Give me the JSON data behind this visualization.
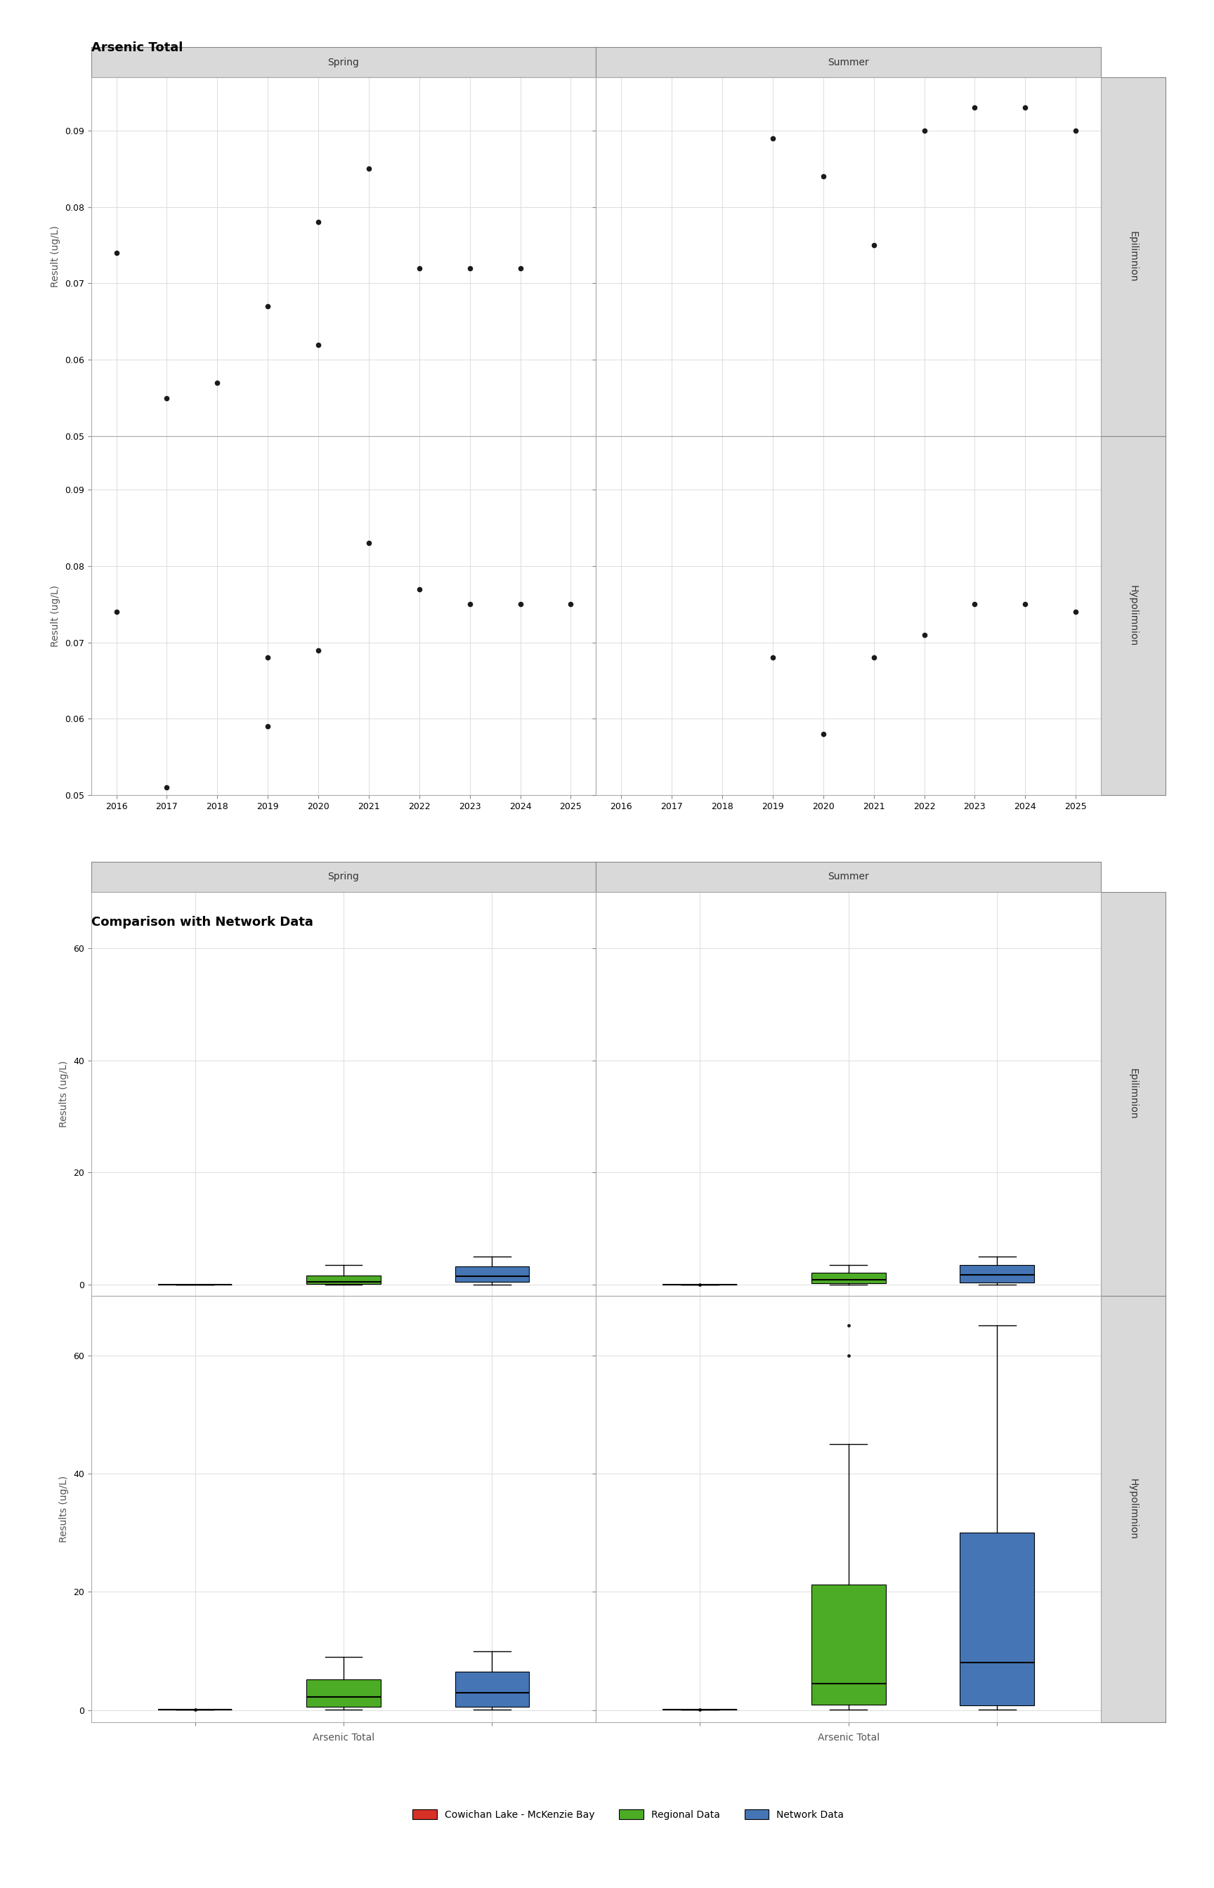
{
  "title1": "Arsenic Total",
  "title2": "Comparison with Network Data",
  "ylabel1": "Result (ug/L)",
  "ylabel2": "Results (ug/L)",
  "xlabel2": "Arsenic Total",
  "scatter_epi_spring_x": [
    2016,
    2017,
    2018,
    2019,
    2020,
    2020,
    2021,
    2022,
    2023,
    2024
  ],
  "scatter_epi_spring_y": [
    0.074,
    0.055,
    0.057,
    0.067,
    0.062,
    0.078,
    0.085,
    0.072,
    0.072,
    0.072
  ],
  "scatter_epi_summer_x": [
    2019,
    2020,
    2021,
    2022,
    2023,
    2024,
    2025
  ],
  "scatter_epi_summer_y": [
    0.089,
    0.084,
    0.075,
    0.09,
    0.093,
    0.093,
    0.09
  ],
  "scatter_hypo_spring_x": [
    2016,
    2017,
    2019,
    2019,
    2020,
    2021,
    2022,
    2023,
    2024,
    2025
  ],
  "scatter_hypo_spring_y": [
    0.074,
    0.051,
    0.059,
    0.068,
    0.069,
    0.083,
    0.077,
    0.075,
    0.075,
    0.075
  ],
  "scatter_hypo_summer_x": [
    2019,
    2020,
    2021,
    2022,
    2023,
    2024,
    2025
  ],
  "scatter_hypo_summer_y": [
    0.068,
    0.058,
    0.068,
    0.071,
    0.075,
    0.075,
    0.074
  ],
  "ylim1": [
    0.05,
    0.097
  ],
  "yticks1": [
    0.05,
    0.06,
    0.07,
    0.08,
    0.09
  ],
  "xlim1": [
    2015.5,
    2025.5
  ],
  "xticks1": [
    2016,
    2017,
    2018,
    2019,
    2020,
    2021,
    2022,
    2023,
    2024,
    2025
  ],
  "dot_color": "#1a1a1a",
  "grid_color": "#dddddd",
  "panel_bg": "#ffffff",
  "strip_bg": "#d9d9d9",
  "strip_text_color": "#333333",
  "axis_color": "#555555",
  "cowichan_color": "#d73027",
  "regional_color": "#4dac26",
  "network_color": "#4575b4",
  "legend_items": [
    {
      "label": "Cowichan Lake - McKenzie Bay",
      "color": "#d73027"
    },
    {
      "label": "Regional Data",
      "color": "#4dac26"
    },
    {
      "label": "Network Data",
      "color": "#4575b4"
    }
  ],
  "epi_ylim": [
    -2,
    70
  ],
  "epi_yticks": [
    0,
    20,
    40,
    60
  ],
  "hypo_ylim": [
    -2,
    70
  ],
  "hypo_yticks": [
    0,
    20,
    40,
    60
  ],
  "cowichan_spring_epi": [
    0.074,
    0.075,
    0.078,
    0.08,
    0.085,
    0.072,
    0.067,
    0.062,
    0.055,
    0.057
  ],
  "regional_spring_epi": [
    0.05,
    0.08,
    0.1,
    0.15,
    0.2,
    0.25,
    0.3,
    0.4,
    0.5,
    0.6,
    0.8,
    1.0,
    1.2,
    1.5,
    1.8,
    2.0,
    2.5,
    3.0,
    3.5
  ],
  "network_spring_epi": [
    0.05,
    0.1,
    0.2,
    0.4,
    0.6,
    0.8,
    1.0,
    1.5,
    2.0,
    2.5,
    3.0,
    3.5,
    4.0,
    4.5,
    5.0
  ],
  "cowichan_summer_epi": [
    0.075,
    0.084,
    0.089,
    0.09,
    0.093,
    0.093,
    0.09
  ],
  "regional_summer_epi": [
    0.05,
    0.1,
    0.2,
    0.4,
    0.6,
    0.8,
    1.0,
    1.5,
    2.0,
    2.5,
    3.0,
    3.5
  ],
  "network_summer_epi": [
    0.05,
    0.1,
    0.2,
    0.4,
    0.8,
    1.2,
    1.8,
    2.5,
    3.0,
    3.5,
    4.0,
    4.5,
    5.0
  ],
  "cowichan_spring_hypo": [
    0.068,
    0.069,
    0.073,
    0.075,
    0.077,
    0.083,
    0.074,
    0.051,
    0.059
  ],
  "regional_spring_hypo": [
    0.05,
    0.1,
    0.2,
    0.4,
    0.6,
    1.0,
    1.5,
    2.0,
    2.5,
    3.0,
    4.0,
    5.0,
    6.0,
    7.0,
    8.0,
    9.0
  ],
  "network_spring_hypo": [
    0.05,
    0.1,
    0.2,
    0.4,
    0.8,
    1.2,
    2.0,
    3.0,
    4.0,
    5.0,
    6.0,
    7.0,
    8.0,
    9.0,
    10.0
  ],
  "cowichan_summer_hypo": [
    0.058,
    0.068,
    0.071,
    0.074,
    0.075
  ],
  "regional_summer_hypo": [
    0.05,
    0.1,
    0.2,
    0.4,
    0.6,
    0.8,
    1.0,
    1.5,
    2.0,
    2.5,
    3.0,
    4.0,
    5.0,
    6.0,
    8.0,
    10.0,
    15.0,
    20.0,
    25.0,
    30.0,
    35.0,
    45.0,
    60.0,
    65.0
  ],
  "network_summer_hypo": [
    0.05,
    0.1,
    0.2,
    0.4,
    0.8,
    1.5,
    3.0,
    5.0,
    8.0,
    12.0,
    18.0,
    25.0,
    30.0,
    35.0,
    45.0,
    55.0,
    65.0
  ],
  "dot_size_scatter": 20,
  "box_width": 0.5
}
